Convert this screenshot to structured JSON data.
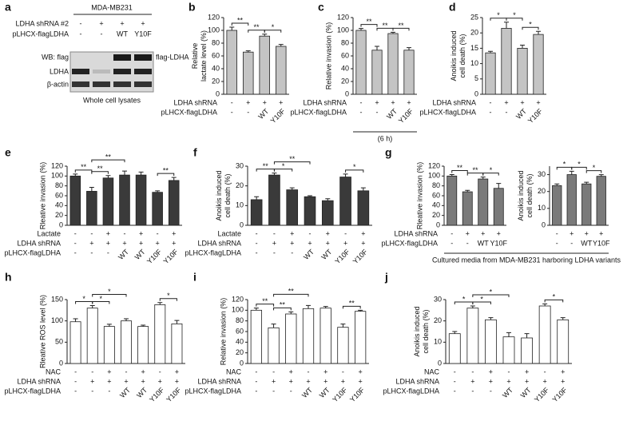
{
  "blot": {
    "panel": "a",
    "cell_line": "MDA-MB231",
    "conditions": [
      {
        "label": "LDHA shRNA #2",
        "marks": [
          "-",
          "+",
          "+",
          "+"
        ]
      },
      {
        "label": "pLHCX-flagLDHA",
        "marks": [
          "-",
          "-",
          "WT",
          "Y10F"
        ]
      }
    ],
    "antibody_rows": [
      "WB: flag",
      "LDHA",
      "β-actin"
    ],
    "band_label": "flag-LDHA",
    "footnote": "Whole cell lysates"
  },
  "chart_data": [
    {
      "type": "bar",
      "panel": "b",
      "ylabel": [
        "Relative",
        "lactate level (%)"
      ],
      "ylim": [
        0,
        120
      ],
      "yticks": [
        0,
        20,
        40,
        60,
        80,
        100,
        120
      ],
      "color": "#c4c4c4",
      "values": [
        100,
        66,
        91,
        75
      ],
      "errors": [
        5,
        2,
        3,
        3
      ],
      "significance": [
        {
          "from": 0,
          "to": 1,
          "label": "**"
        },
        {
          "from": 1,
          "to": 2,
          "label": "**"
        },
        {
          "from": 2,
          "to": 3,
          "label": "*"
        }
      ],
      "conditions": [
        {
          "label": "LDHA shRNA",
          "marks": [
            "-",
            "+",
            "+",
            "+"
          ]
        },
        {
          "label": "pLHCX-flagLDHA",
          "marks": [
            "-",
            "-",
            "WT",
            "Y10F"
          ]
        }
      ],
      "rotated_labels": true
    },
    {
      "type": "bar",
      "panel": "c",
      "ylabel": [
        "Relative invasion (%)"
      ],
      "ylim": [
        0,
        120
      ],
      "yticks": [
        0,
        20,
        40,
        60,
        80,
        100,
        120
      ],
      "color": "#c4c4c4",
      "values": [
        100,
        69,
        95,
        69
      ],
      "errors": [
        3,
        6,
        2,
        4
      ],
      "significance": [
        {
          "from": 0,
          "to": 1,
          "label": "**"
        },
        {
          "from": 1,
          "to": 2,
          "label": "**"
        },
        {
          "from": 2,
          "to": 3,
          "label": "**"
        }
      ],
      "conditions": [
        {
          "label": "LDHA shRNA",
          "marks": [
            "-",
            "+",
            "+",
            "+"
          ]
        },
        {
          "label": "pLHCX-flagLDHA",
          "marks": [
            "-",
            "-",
            "WT",
            "Y10F"
          ]
        }
      ],
      "rotated_labels": true,
      "note": "(6 h)"
    },
    {
      "type": "bar",
      "panel": "d",
      "ylabel": [
        "Anoikis induced",
        "cell death (%)"
      ],
      "ylim": [
        0,
        25
      ],
      "yticks": [
        0,
        5,
        10,
        15,
        20,
        25
      ],
      "color": "#c4c4c4",
      "values": [
        13.5,
        21.5,
        15,
        19.5
      ],
      "errors": [
        0.5,
        2,
        1,
        1
      ],
      "significance": [
        {
          "from": 0,
          "to": 1,
          "label": "*"
        },
        {
          "from": 1,
          "to": 2,
          "label": "*"
        },
        {
          "from": 2,
          "to": 3,
          "label": "*"
        }
      ],
      "conditions": [
        {
          "label": "LDHA shRNA",
          "marks": [
            "-",
            "+",
            "+",
            "+"
          ]
        },
        {
          "label": "pLHCX-flagLDHA",
          "marks": [
            "-",
            "-",
            "WT",
            "Y10F"
          ]
        }
      ],
      "rotated_labels": true
    },
    {
      "type": "bar",
      "panel": "e",
      "ylabel": [
        "Rleative invasion (%)"
      ],
      "ylim": [
        0,
        120
      ],
      "yticks": [
        0,
        20,
        40,
        60,
        80,
        100,
        120
      ],
      "color": "#3a3a3a",
      "values": [
        100,
        69,
        96,
        102,
        102,
        67,
        91
      ],
      "errors": [
        4,
        8,
        5,
        8,
        6,
        3,
        6
      ],
      "significance": [
        {
          "from": 0,
          "to": 1,
          "label": "**"
        },
        {
          "from": 1,
          "to": 2,
          "label": "**"
        },
        {
          "from": 1,
          "to": 3,
          "label": "**"
        },
        {
          "from": 5,
          "to": 6,
          "label": "**"
        }
      ],
      "conditions": [
        {
          "label": "Lactate",
          "marks": [
            "-",
            "-",
            "+",
            "-",
            "+",
            "-",
            "+"
          ]
        },
        {
          "label": "LDHA shRNA",
          "marks": [
            "-",
            "+",
            "+",
            "+",
            "+",
            "+",
            "+"
          ]
        },
        {
          "label": "pLHCX-flagLDHA",
          "marks": [
            "-",
            "-",
            "-",
            "WT",
            "WT",
            "Y10F",
            "Y10F"
          ]
        }
      ],
      "rotated_labels": true
    },
    {
      "type": "bar",
      "panel": "f",
      "ylabel": [
        "Anoikis induced",
        "cell death (%)"
      ],
      "ylim": [
        0,
        30
      ],
      "yticks": [
        0,
        10,
        20,
        30
      ],
      "color": "#3a3a3a",
      "values": [
        13,
        25.5,
        18,
        14.5,
        12.5,
        24.5,
        17.5
      ],
      "errors": [
        1.5,
        1,
        1,
        0.5,
        1,
        1.5,
        1.5
      ],
      "significance": [
        {
          "from": 0,
          "to": 1,
          "label": "**"
        },
        {
          "from": 1,
          "to": 2,
          "label": "*"
        },
        {
          "from": 1,
          "to": 3,
          "label": "**"
        },
        {
          "from": 5,
          "to": 6,
          "label": "*"
        }
      ],
      "conditions": [
        {
          "label": "Lactate",
          "marks": [
            "-",
            "-",
            "+",
            "-",
            "+",
            "-",
            "+"
          ]
        },
        {
          "label": "LDHA shRNA",
          "marks": [
            "-",
            "+",
            "+",
            "+",
            "+",
            "+",
            "+"
          ]
        },
        {
          "label": "pLHCX-flagLDHA",
          "marks": [
            "-",
            "-",
            "-",
            "WT",
            "WT",
            "Y10F",
            "Y10F"
          ]
        }
      ],
      "rotated_labels": true
    },
    {
      "type": "bar",
      "panel": "g",
      "ylabel": [
        "Rleative invasion (%)"
      ],
      "ylim": [
        0,
        120
      ],
      "yticks": [
        0,
        20,
        40,
        60,
        80,
        100,
        120
      ],
      "color": "#7a7a7a",
      "values": [
        100,
        68,
        94,
        75
      ],
      "errors": [
        3,
        3,
        4,
        10
      ],
      "significance": [
        {
          "from": 0,
          "to": 1,
          "label": "**"
        },
        {
          "from": 1,
          "to": 2,
          "label": "**"
        },
        {
          "from": 2,
          "to": 3,
          "label": "*"
        }
      ],
      "conditions": [
        {
          "label": "LDHA shRNA",
          "marks": [
            "-",
            "+",
            "+",
            "+"
          ]
        },
        {
          "label": "pLHCX-flagLDHA",
          "marks": [
            "-",
            "-",
            "WT",
            "Y10F"
          ]
        }
      ],
      "rotated_labels": false,
      "note": "Cultured media from MDA-MB231 harboring LDHA variants"
    },
    {
      "type": "bar",
      "ylabel": [
        "Anoikis induced",
        "cell death (%)"
      ],
      "ylim": [
        0,
        35
      ],
      "yticks": [
        0,
        10,
        20,
        30
      ],
      "color": "#7a7a7a",
      "values": [
        23.5,
        30,
        24.5,
        29
      ],
      "errors": [
        1,
        2,
        1,
        1
      ],
      "significance": [
        {
          "from": 0,
          "to": 1,
          "label": "*"
        },
        {
          "from": 1,
          "to": 2,
          "label": "*"
        },
        {
          "from": 2,
          "to": 3,
          "label": "*"
        }
      ],
      "conditions": [
        {
          "marks": [
            "-",
            "+",
            "+",
            "+"
          ]
        },
        {
          "marks": [
            "-",
            "-",
            "WT",
            "Y10F"
          ]
        }
      ],
      "rotated_labels": false
    },
    {
      "type": "bar",
      "panel": "h",
      "ylabel": [
        "Rleative ROS level (%)"
      ],
      "ylim": [
        0,
        150
      ],
      "yticks": [
        0,
        50,
        100,
        150
      ],
      "color": "#ffffff",
      "values": [
        98,
        130,
        87,
        100,
        87,
        138,
        93
      ],
      "errors": [
        7,
        6,
        5,
        5,
        3,
        5,
        8
      ],
      "significance": [
        {
          "from": 0,
          "to": 1,
          "label": "*"
        },
        {
          "from": 1,
          "to": 2,
          "label": "*"
        },
        {
          "from": 1,
          "to": 3,
          "label": "*"
        },
        {
          "from": 5,
          "to": 6,
          "label": "*"
        }
      ],
      "conditions": [
        {
          "label": "NAC",
          "marks": [
            "-",
            "-",
            "+",
            "-",
            "+",
            "-",
            "+"
          ]
        },
        {
          "label": "LDHA shRNA",
          "marks": [
            "-",
            "+",
            "+",
            "+",
            "+",
            "+",
            "+"
          ]
        },
        {
          "label": "pLHCX-flagLDHA",
          "marks": [
            "-",
            "-",
            "-",
            "WT",
            "WT",
            "Y10F",
            "Y10F"
          ]
        }
      ],
      "rotated_labels": true
    },
    {
      "type": "bar",
      "panel": "i",
      "ylabel": [
        "Relative invasion (%)"
      ],
      "ylim": [
        0,
        120
      ],
      "yticks": [
        0,
        20,
        40,
        60,
        80,
        100,
        120
      ],
      "color": "#ffffff",
      "values": [
        100,
        67,
        93,
        103,
        104,
        68,
        98
      ],
      "errors": [
        4,
        7,
        4,
        6,
        3,
        6,
        2
      ],
      "significance": [
        {
          "from": 0,
          "to": 1,
          "label": "**"
        },
        {
          "from": 1,
          "to": 2,
          "label": "**"
        },
        {
          "from": 1,
          "to": 3,
          "label": "**"
        },
        {
          "from": 5,
          "to": 6,
          "label": "**"
        }
      ],
      "conditions": [
        {
          "label": "NAC",
          "marks": [
            "-",
            "-",
            "+",
            "-",
            "+",
            "-",
            "+"
          ]
        },
        {
          "label": "LDHA shRNA",
          "marks": [
            "-",
            "+",
            "+",
            "+",
            "+",
            "+",
            "+"
          ]
        },
        {
          "label": "pLHCX-flagLDHA",
          "marks": [
            "-",
            "-",
            "-",
            "WT",
            "WT",
            "Y10F",
            "Y10F"
          ]
        }
      ],
      "rotated_labels": true
    },
    {
      "type": "bar",
      "panel": "j",
      "ylabel": [
        "Anoikis induced",
        "cell death (%)"
      ],
      "ylim": [
        0,
        30
      ],
      "yticks": [
        0,
        10,
        20,
        30
      ],
      "color": "#ffffff",
      "values": [
        14,
        26,
        20.5,
        12.5,
        12,
        27,
        20.5
      ],
      "errors": [
        1,
        1,
        1,
        2,
        2,
        1,
        1
      ],
      "significance": [
        {
          "from": 0,
          "to": 1,
          "label": "*"
        },
        {
          "from": 1,
          "to": 2,
          "label": "*"
        },
        {
          "from": 1,
          "to": 3,
          "label": "*"
        },
        {
          "from": 5,
          "to": 6,
          "label": "*"
        }
      ],
      "conditions": [
        {
          "label": "NAC",
          "marks": [
            "-",
            "-",
            "+",
            "-",
            "+",
            "-",
            "+"
          ]
        },
        {
          "label": "LDHA shRNA",
          "marks": [
            "-",
            "+",
            "+",
            "+",
            "+",
            "+",
            "+"
          ]
        },
        {
          "label": "pLHCX-flagLDHA",
          "marks": [
            "-",
            "-",
            "-",
            "WT",
            "WT",
            "Y10F",
            "Y10F"
          ]
        }
      ],
      "rotated_labels": true
    }
  ]
}
